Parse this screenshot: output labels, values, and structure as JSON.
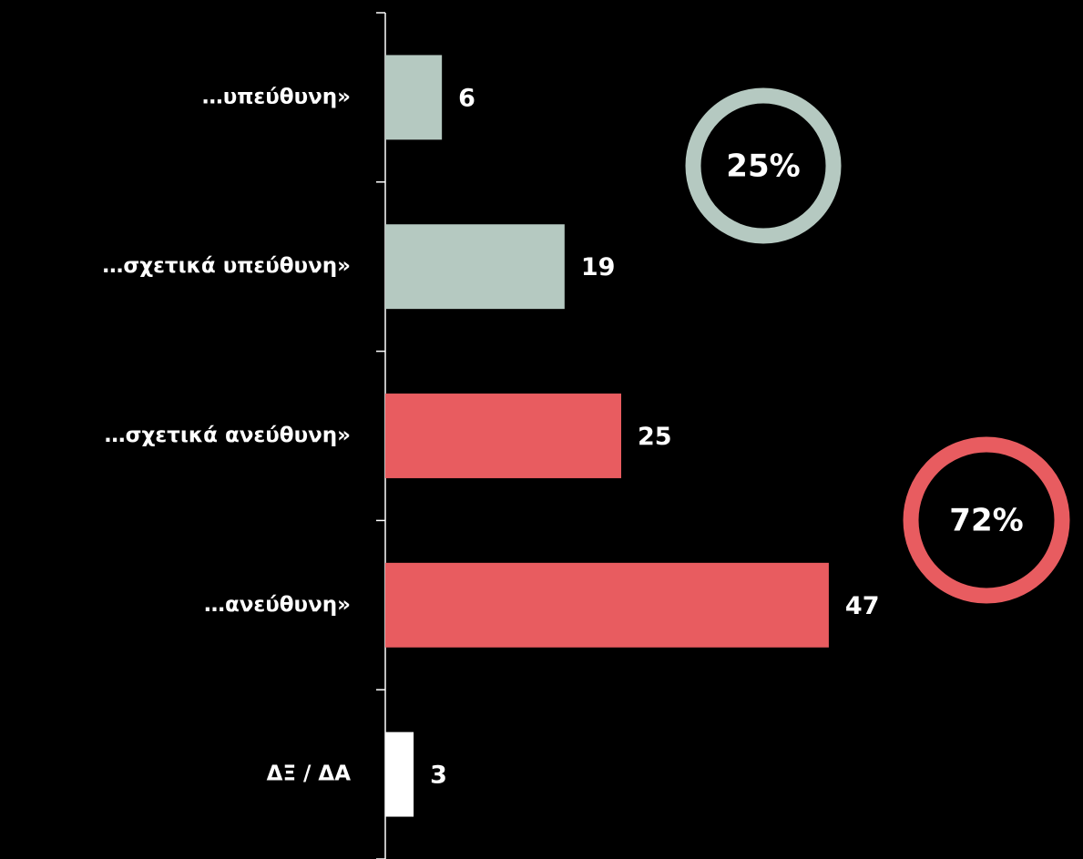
{
  "chart_data": {
    "type": "barh",
    "categories": [
      "…υπεύθυνη»",
      "…σχετικά υπεύθυνη»",
      "…σχετικά ανεύθυνη»",
      "…ανεύθυνη»",
      "ΔΞ / ΔΑ"
    ],
    "values": [
      6,
      19,
      25,
      47,
      3
    ],
    "colors": [
      "#b5c9c1",
      "#b5c9c1",
      "#e85c60",
      "#e85c60",
      "#ffffff"
    ],
    "xlim": [
      0,
      50
    ],
    "annotations": [
      {
        "text": "25%",
        "color": "#b5c9c1"
      },
      {
        "text": "72%",
        "color": "#e85c60"
      }
    ]
  }
}
